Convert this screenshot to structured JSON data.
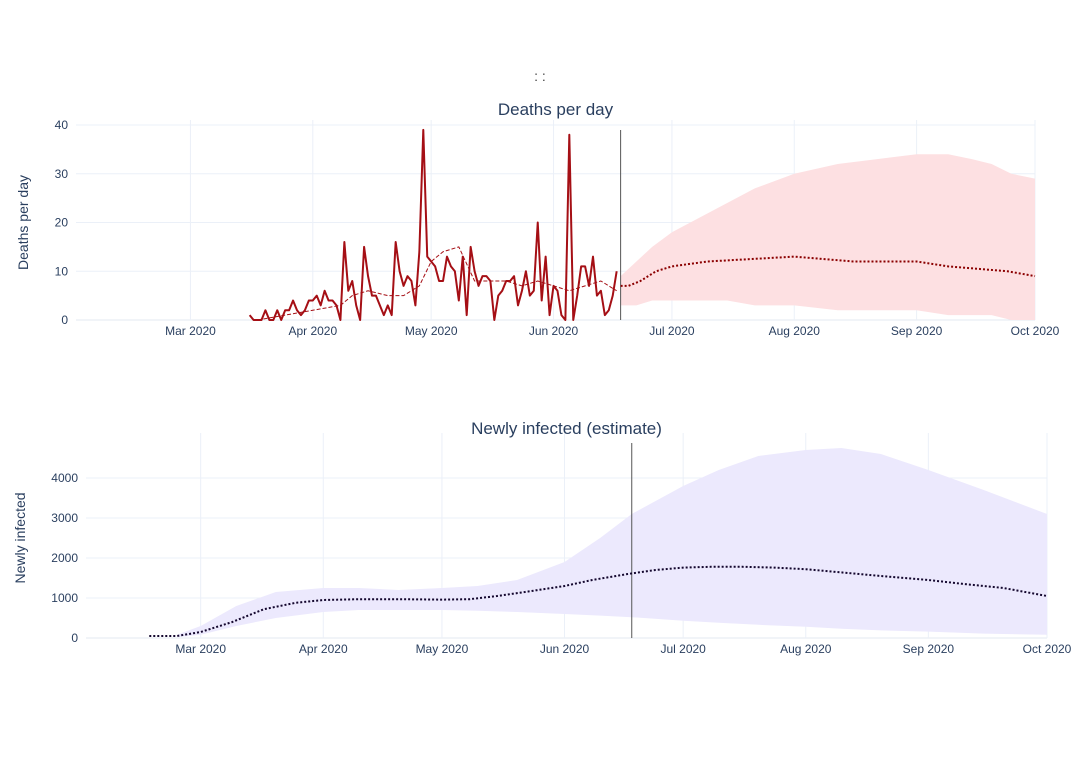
{
  "page": {
    "header": ":          :"
  },
  "chart_data": [
    {
      "type": "line",
      "title": "Deaths per day",
      "ylabel": "Deaths per day",
      "xlabel": "",
      "x_range": [
        "2020-02-01",
        "2020-10-01"
      ],
      "ylim": [
        0,
        40
      ],
      "y_ticks": [
        0,
        10,
        20,
        30,
        40
      ],
      "x_ticks": [
        {
          "date": "2020-03-01",
          "label": "Mar 2020"
        },
        {
          "date": "2020-04-01",
          "label": "Apr 2020"
        },
        {
          "date": "2020-05-01",
          "label": "May 2020"
        },
        {
          "date": "2020-06-01",
          "label": "Jun 2020"
        },
        {
          "date": "2020-07-01",
          "label": "Jul 2020"
        },
        {
          "date": "2020-08-01",
          "label": "Aug 2020"
        },
        {
          "date": "2020-09-01",
          "label": "Sep 2020"
        },
        {
          "date": "2020-10-01",
          "label": "Oct 2020"
        }
      ],
      "grid": true,
      "today": "2020-06-18",
      "colors": {
        "observed": "#a50f15",
        "projection": "#8b0000",
        "band": "#fde0e2"
      },
      "series": [
        {
          "style": "observed",
          "x": [
            "2020-03-16",
            "2020-03-17",
            "2020-03-18",
            "2020-03-19",
            "2020-03-20",
            "2020-03-21",
            "2020-03-22",
            "2020-03-23",
            "2020-03-24",
            "2020-03-25",
            "2020-03-26",
            "2020-03-27",
            "2020-03-28",
            "2020-03-29",
            "2020-03-30",
            "2020-03-31",
            "2020-04-01",
            "2020-04-02",
            "2020-04-03",
            "2020-04-04",
            "2020-04-05",
            "2020-04-06",
            "2020-04-07",
            "2020-04-08",
            "2020-04-09",
            "2020-04-10",
            "2020-04-11",
            "2020-04-12",
            "2020-04-13",
            "2020-04-14",
            "2020-04-15",
            "2020-04-16",
            "2020-04-17",
            "2020-04-18",
            "2020-04-19",
            "2020-04-20",
            "2020-04-21",
            "2020-04-22",
            "2020-04-23",
            "2020-04-24",
            "2020-04-25",
            "2020-04-26",
            "2020-04-27",
            "2020-04-28",
            "2020-04-29",
            "2020-04-30",
            "2020-05-01",
            "2020-05-02",
            "2020-05-03",
            "2020-05-04",
            "2020-05-05",
            "2020-05-06",
            "2020-05-07",
            "2020-05-08",
            "2020-05-09",
            "2020-05-10",
            "2020-05-11",
            "2020-05-12",
            "2020-05-13",
            "2020-05-14",
            "2020-05-15",
            "2020-05-16",
            "2020-05-17",
            "2020-05-18",
            "2020-05-19",
            "2020-05-20",
            "2020-05-21",
            "2020-05-22",
            "2020-05-23",
            "2020-05-24",
            "2020-05-25",
            "2020-05-26",
            "2020-05-27",
            "2020-05-28",
            "2020-05-29",
            "2020-05-30",
            "2020-05-31",
            "2020-06-01",
            "2020-06-02",
            "2020-06-03",
            "2020-06-04",
            "2020-06-05",
            "2020-06-06",
            "2020-06-07",
            "2020-06-08",
            "2020-06-09",
            "2020-06-10",
            "2020-06-11",
            "2020-06-12",
            "2020-06-13",
            "2020-06-14",
            "2020-06-15",
            "2020-06-16",
            "2020-06-17"
          ],
          "y": [
            1,
            0,
            0,
            0,
            2,
            0,
            0,
            2,
            0,
            2,
            2,
            4,
            2,
            1,
            2,
            4,
            4,
            5,
            3,
            6,
            4,
            4,
            3,
            0,
            16,
            6,
            8,
            3,
            0,
            15,
            9,
            5,
            5,
            3,
            1,
            3,
            1,
            16,
            10,
            7,
            9,
            8,
            3,
            14,
            39,
            13,
            12,
            11,
            8,
            8,
            13,
            11,
            10,
            4,
            13,
            1,
            15,
            10,
            7,
            9,
            9,
            8,
            0,
            5,
            6,
            8,
            8,
            9,
            3,
            6,
            10,
            5,
            6,
            20,
            4,
            13,
            1,
            7,
            6,
            1,
            0,
            38,
            0,
            5,
            11,
            11,
            7,
            13,
            5,
            6,
            1,
            2,
            5,
            10
          ]
        },
        {
          "style": "observed-average",
          "x": [
            "2020-03-18",
            "2020-03-25",
            "2020-04-01",
            "2020-04-08",
            "2020-04-11",
            "2020-04-15",
            "2020-04-20",
            "2020-04-24",
            "2020-04-28",
            "2020-05-01",
            "2020-05-04",
            "2020-05-08",
            "2020-05-12",
            "2020-05-16",
            "2020-05-20",
            "2020-05-24",
            "2020-05-28",
            "2020-06-01",
            "2020-06-05",
            "2020-06-09",
            "2020-06-13",
            "2020-06-17"
          ],
          "y": [
            0,
            1,
            2,
            3,
            5,
            6,
            5,
            5,
            7,
            12,
            14,
            15,
            8,
            8,
            8,
            7,
            8,
            7,
            6,
            7,
            8,
            6
          ]
        },
        {
          "style": "projection",
          "x": [
            "2020-06-18",
            "2020-06-20",
            "2020-06-23",
            "2020-06-27",
            "2020-07-01",
            "2020-07-10",
            "2020-08-01",
            "2020-08-16",
            "2020-09-01",
            "2020-09-09",
            "2020-09-24",
            "2020-10-01"
          ],
          "y": [
            7,
            7,
            8,
            10,
            11,
            12,
            13,
            12,
            12,
            11,
            10,
            9
          ]
        }
      ],
      "band": {
        "x": [
          "2020-06-18",
          "2020-06-22",
          "2020-06-26",
          "2020-07-01",
          "2020-07-08",
          "2020-07-15",
          "2020-07-22",
          "2020-08-01",
          "2020-08-12",
          "2020-08-22",
          "2020-09-01",
          "2020-09-09",
          "2020-09-15",
          "2020-09-20",
          "2020-09-25",
          "2020-10-01"
        ],
        "upper": [
          9,
          12,
          15,
          18,
          21,
          24,
          27,
          30,
          32,
          33,
          34,
          34,
          33,
          32,
          30,
          29
        ],
        "lower": [
          3,
          3,
          4,
          4,
          4,
          4,
          3,
          3,
          2,
          2,
          2,
          1,
          1,
          1,
          0,
          0
        ]
      }
    },
    {
      "type": "line",
      "title": "Newly infected (estimate)",
      "ylabel": "Newly infected",
      "xlabel": "",
      "x_range": [
        "2020-02-01",
        "2020-10-01"
      ],
      "ylim": [
        0,
        5000
      ],
      "y_ticks": [
        0,
        1000,
        2000,
        3000,
        4000
      ],
      "x_ticks": [
        {
          "date": "2020-03-01",
          "label": "Mar 2020"
        },
        {
          "date": "2020-04-01",
          "label": "Apr 2020"
        },
        {
          "date": "2020-05-01",
          "label": "May 2020"
        },
        {
          "date": "2020-06-01",
          "label": "Jun 2020"
        },
        {
          "date": "2020-07-01",
          "label": "Jul 2020"
        },
        {
          "date": "2020-08-01",
          "label": "Aug 2020"
        },
        {
          "date": "2020-09-01",
          "label": "Sep 2020"
        },
        {
          "date": "2020-10-01",
          "label": "Oct 2020"
        }
      ],
      "grid": true,
      "today": "2020-06-18",
      "colors": {
        "projection": "#14072e",
        "band": "#ece9fd"
      },
      "series": [
        {
          "style": "projection",
          "x": [
            "2020-02-17",
            "2020-02-24",
            "2020-03-01",
            "2020-03-09",
            "2020-03-17",
            "2020-03-25",
            "2020-04-01",
            "2020-04-10",
            "2020-04-20",
            "2020-05-01",
            "2020-05-08",
            "2020-05-15",
            "2020-05-22",
            "2020-06-01",
            "2020-06-08",
            "2020-06-17",
            "2020-06-24",
            "2020-07-01",
            "2020-07-08",
            "2020-07-16",
            "2020-07-24",
            "2020-08-01",
            "2020-08-10",
            "2020-08-20",
            "2020-09-01",
            "2020-09-10",
            "2020-09-20",
            "2020-10-01"
          ],
          "y": [
            50,
            50,
            150,
            400,
            720,
            880,
            950,
            970,
            970,
            960,
            970,
            1050,
            1150,
            1300,
            1450,
            1600,
            1700,
            1760,
            1780,
            1780,
            1760,
            1720,
            1640,
            1550,
            1450,
            1350,
            1250,
            1050
          ]
        }
      ],
      "band": {
        "x": [
          "2020-02-24",
          "2020-03-01",
          "2020-03-10",
          "2020-03-20",
          "2020-04-01",
          "2020-04-10",
          "2020-04-20",
          "2020-05-01",
          "2020-05-10",
          "2020-05-20",
          "2020-06-01",
          "2020-06-10",
          "2020-06-18",
          "2020-07-01",
          "2020-07-10",
          "2020-07-20",
          "2020-08-01",
          "2020-08-10",
          "2020-08-20",
          "2020-09-01",
          "2020-09-15",
          "2020-10-01"
        ],
        "upper": [
          80,
          300,
          800,
          1150,
          1250,
          1250,
          1200,
          1250,
          1300,
          1450,
          1900,
          2500,
          3100,
          3800,
          4200,
          4550,
          4700,
          4750,
          4600,
          4200,
          3700,
          3100
        ],
        "lower": [
          20,
          80,
          300,
          500,
          650,
          700,
          700,
          700,
          680,
          650,
          600,
          560,
          520,
          430,
          380,
          330,
          280,
          230,
          190,
          160,
          110,
          80
        ]
      }
    }
  ]
}
